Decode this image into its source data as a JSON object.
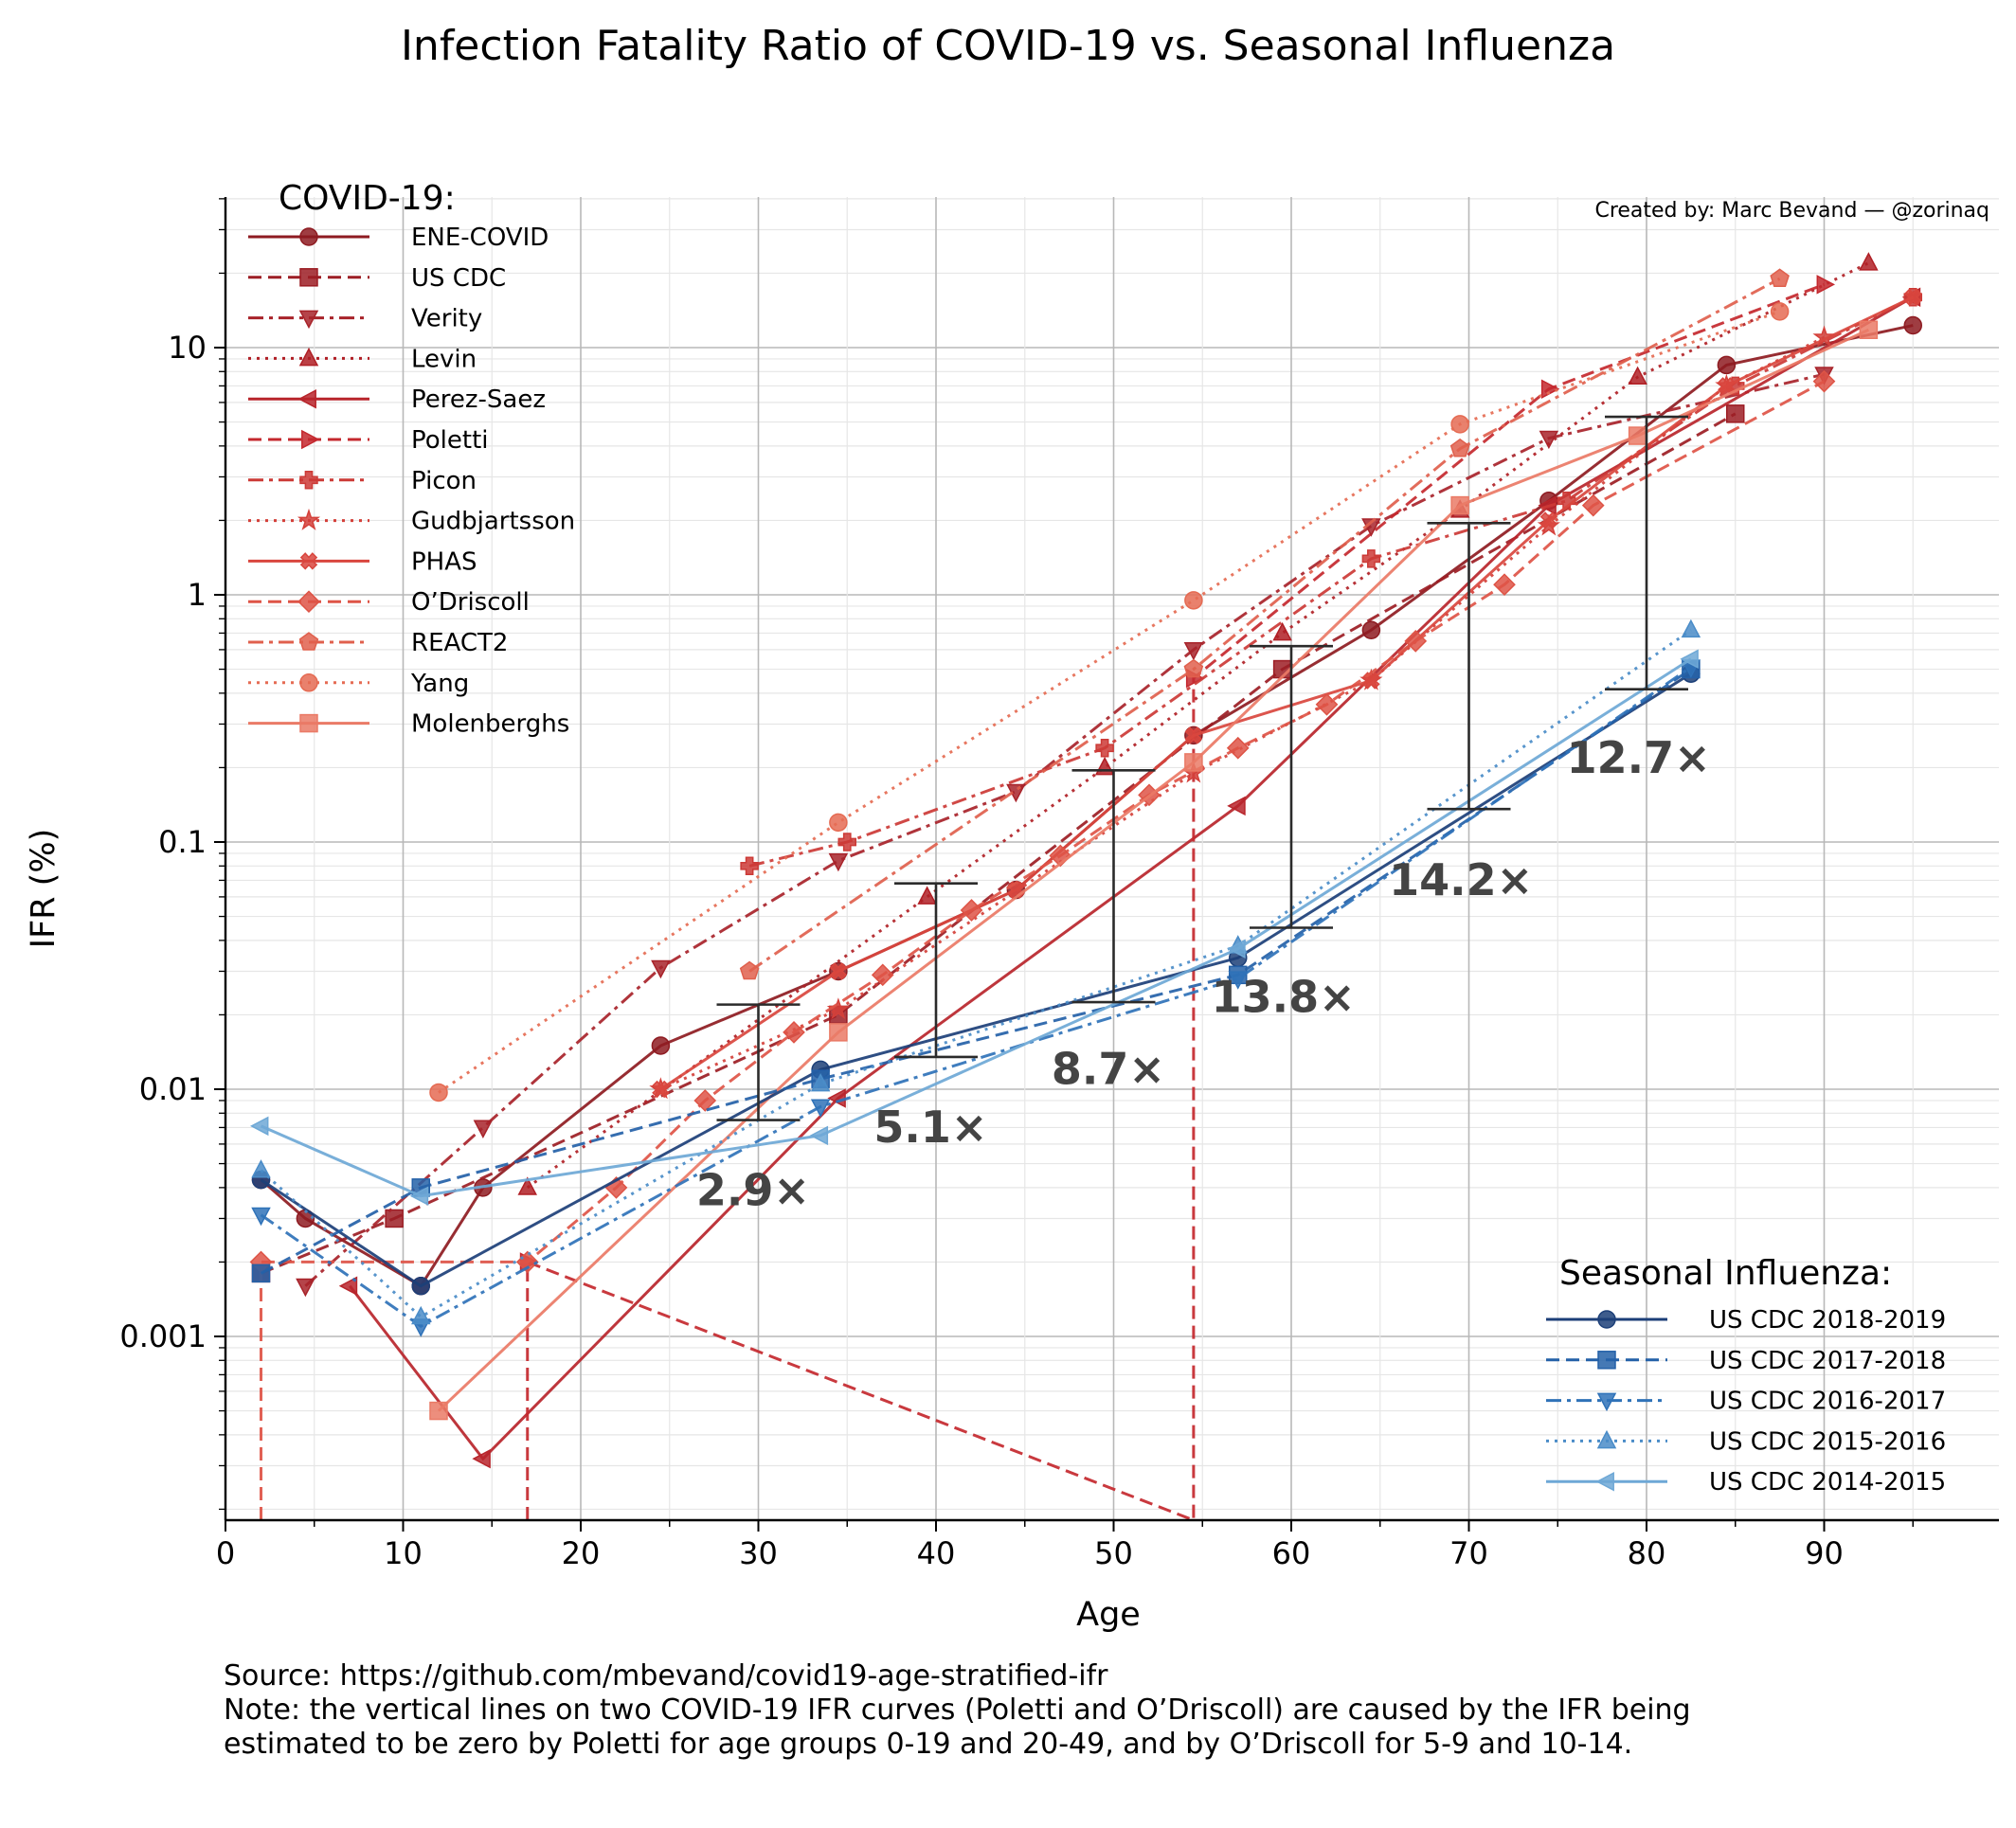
{
  "chart_data": {
    "type": "line",
    "title": "Infection Fatality Ratio of COVID-19 vs. Seasonal Influenza",
    "xlabel": "Age",
    "ylabel": "IFR (%)",
    "credit": "Created by: Marc Bevand — @zorinaq",
    "yscale": "log",
    "xlim": [
      0,
      100
    ],
    "ylim": [
      0.00018,
      40
    ],
    "xticks": [
      "0",
      "10",
      "20",
      "30",
      "40",
      "50",
      "60",
      "70",
      "80",
      "90"
    ],
    "yticks": [
      {
        "value": 0.001,
        "label": "0.001"
      },
      {
        "value": 0.01,
        "label": "0.01"
      },
      {
        "value": 0.1,
        "label": "0.1"
      },
      {
        "value": 1,
        "label": "1"
      },
      {
        "value": 10,
        "label": "10"
      }
    ],
    "grid": true,
    "covid_legend_title": "COVID-19:",
    "flu_legend_title": "Seasonal Influenza:",
    "covid_series": [
      {
        "name": "ENE-COVID",
        "color": "#8e1b21",
        "dash": "solid",
        "marker": "o",
        "points": [
          [
            2,
            0.0043
          ],
          [
            4.5,
            0.003
          ],
          [
            11,
            0.0016
          ],
          [
            14.5,
            0.004
          ],
          [
            24.5,
            0.015
          ],
          [
            34.5,
            0.03
          ],
          [
            44.5,
            0.064
          ],
          [
            54.5,
            0.27
          ],
          [
            64.5,
            0.72
          ],
          [
            74.5,
            2.4
          ],
          [
            84.5,
            8.5
          ],
          [
            95,
            12.3
          ]
        ]
      },
      {
        "name": "US CDC",
        "color": "#9c1d24",
        "dash": "dash",
        "marker": "s",
        "points": [
          [
            2,
            0.0018
          ],
          [
            9.5,
            0.003
          ],
          [
            34.5,
            0.02
          ],
          [
            59.5,
            0.5
          ],
          [
            85,
            5.4
          ]
        ]
      },
      {
        "name": "Verity",
        "color": "#a8232a",
        "dash": "dashdot",
        "marker": "v",
        "points": [
          [
            4.5,
            0.0016
          ],
          [
            14.5,
            0.007
          ],
          [
            24.5,
            0.031
          ],
          [
            34.5,
            0.084
          ],
          [
            44.5,
            0.16
          ],
          [
            54.5,
            0.6
          ],
          [
            64.5,
            1.9
          ],
          [
            74.5,
            4.3
          ],
          [
            90,
            7.8
          ]
        ]
      },
      {
        "name": "Levin",
        "color": "#b01f25",
        "dash": "dot",
        "marker": "^",
        "points": [
          [
            17,
            0.004
          ],
          [
            39.5,
            0.06
          ],
          [
            49.5,
            0.2
          ],
          [
            59.5,
            0.7
          ],
          [
            69.5,
            2.2
          ],
          [
            79.5,
            7.6
          ],
          [
            92.5,
            22
          ]
        ]
      },
      {
        "name": "Perez-Saez",
        "color": "#b8252b",
        "dash": "solid",
        "marker": "<",
        "points": [
          [
            7,
            0.0016
          ],
          [
            14.5,
            0.00032
          ],
          [
            34.5,
            0.0092
          ],
          [
            57,
            0.14
          ],
          [
            74.5,
            2.3
          ],
          [
            95,
            16
          ]
        ]
      },
      {
        "name": "Poletti",
        "color": "#c4282e",
        "dash": "dash",
        "marker": ">",
        "points": [
          [
            17,
            0.00018
          ],
          [
            17,
            0.002
          ],
          [
            54.5,
            0.00018
          ],
          [
            54.5,
            0.46
          ],
          [
            74.5,
            6.8
          ],
          [
            90,
            18
          ]
        ]
      },
      {
        "name": "Picon",
        "color": "#cc3a36",
        "dash": "dashdot",
        "marker": "P",
        "points": [
          [
            29.5,
            0.08
          ],
          [
            35,
            0.1
          ],
          [
            49.5,
            0.24
          ],
          [
            64.5,
            1.4
          ],
          [
            75.5,
            2.4
          ],
          [
            85,
            7
          ],
          [
            95,
            16
          ]
        ]
      },
      {
        "name": "Gudbjartsson",
        "color": "#d4403a",
        "dash": "dot",
        "marker": "*",
        "points": [
          [
            24.5,
            0.01
          ],
          [
            34.5,
            0.021
          ],
          [
            54.5,
            0.19
          ],
          [
            64.5,
            0.45
          ],
          [
            74.5,
            1.9
          ],
          [
            84.5,
            7
          ],
          [
            90,
            11
          ]
        ]
      },
      {
        "name": "PHAS",
        "color": "#d9463e",
        "dash": "solid",
        "marker": "X",
        "points": [
          [
            24.5,
            0.01
          ],
          [
            34.5,
            0.03
          ],
          [
            44.5,
            0.064
          ],
          [
            54.5,
            0.27
          ],
          [
            64.5,
            0.45
          ],
          [
            74.5,
            2
          ],
          [
            84.5,
            7
          ],
          [
            95,
            16
          ]
        ]
      },
      {
        "name": "O’Driscoll",
        "color": "#de5446",
        "dash": "dash",
        "marker": "D",
        "points": [
          [
            2,
            0.00018
          ],
          [
            2,
            0.002
          ],
          [
            17,
            0.002
          ],
          [
            22,
            0.004
          ],
          [
            27,
            0.009
          ],
          [
            32,
            0.017
          ],
          [
            37,
            0.029
          ],
          [
            42,
            0.053
          ],
          [
            47,
            0.088
          ],
          [
            52,
            0.155
          ],
          [
            57,
            0.24
          ],
          [
            62,
            0.36
          ],
          [
            67,
            0.65
          ],
          [
            72,
            1.1
          ],
          [
            77,
            2.3
          ],
          [
            90,
            7.3
          ]
        ]
      },
      {
        "name": "REACT2",
        "color": "#e0604d",
        "dash": "dashdot",
        "marker": "p",
        "points": [
          [
            29.5,
            0.03
          ],
          [
            54.5,
            0.5
          ],
          [
            69.5,
            3.9
          ],
          [
            87.5,
            19
          ]
        ]
      },
      {
        "name": "Yang",
        "color": "#e56b53",
        "dash": "dot",
        "marker": "o",
        "points": [
          [
            12,
            0.0097
          ],
          [
            34.5,
            0.12
          ],
          [
            54.5,
            0.95
          ],
          [
            69.5,
            4.9
          ],
          [
            87.5,
            14
          ]
        ]
      },
      {
        "name": "Molenberghs",
        "color": "#ea7a66",
        "dash": "solid",
        "marker": "s",
        "points": [
          [
            12,
            0.0005
          ],
          [
            34.5,
            0.017
          ],
          [
            54.5,
            0.21
          ],
          [
            69.5,
            2.3
          ],
          [
            79.5,
            4.4
          ],
          [
            92.5,
            11.8
          ]
        ]
      }
    ],
    "flu_series": [
      {
        "name": "US CDC 2018-2019",
        "color": "#1c3f78",
        "dash": "solid",
        "marker": "o",
        "points": [
          [
            2,
            0.0043
          ],
          [
            11,
            0.0016
          ],
          [
            33.5,
            0.012
          ],
          [
            57,
            0.034
          ],
          [
            82.5,
            0.48
          ]
        ]
      },
      {
        "name": "US CDC 2017-2018",
        "color": "#2461a8",
        "dash": "dash",
        "marker": "s",
        "points": [
          [
            2,
            0.0018
          ],
          [
            11,
            0.004
          ],
          [
            33.5,
            0.011
          ],
          [
            57,
            0.029
          ],
          [
            82.5,
            0.5
          ]
        ]
      },
      {
        "name": "US CDC 2016-2017",
        "color": "#2f72b8",
        "dash": "dashdot",
        "marker": "v",
        "points": [
          [
            2,
            0.0031
          ],
          [
            11,
            0.0011
          ],
          [
            33.5,
            0.0085
          ],
          [
            57,
            0.028
          ],
          [
            82.5,
            0.51
          ]
        ]
      },
      {
        "name": "US CDC 2015-2016",
        "color": "#4a8cc8",
        "dash": "dot",
        "marker": "^",
        "points": [
          [
            2,
            0.0047
          ],
          [
            11,
            0.0012
          ],
          [
            33.5,
            0.0105
          ],
          [
            57,
            0.038
          ],
          [
            82.5,
            0.72
          ]
        ]
      },
      {
        "name": "US CDC 2014-2015",
        "color": "#6ea8d6",
        "dash": "solid",
        "marker": "<",
        "points": [
          [
            2,
            0.0071
          ],
          [
            11,
            0.0037
          ],
          [
            33.5,
            0.0065
          ],
          [
            57,
            0.037
          ],
          [
            82.5,
            0.55
          ]
        ]
      }
    ],
    "ratio_annotations": [
      {
        "x": 30,
        "low": 0.0075,
        "high": 0.022,
        "label": "2.9×",
        "label_x": 26.5,
        "label_y": 0.0034
      },
      {
        "x": 40,
        "low": 0.0135,
        "high": 0.068,
        "label": "5.1×",
        "label_x": 36.5,
        "label_y": 0.0061
      },
      {
        "x": 50,
        "low": 0.0225,
        "high": 0.195,
        "label": "8.7×",
        "label_x": 46.5,
        "label_y": 0.0105
      },
      {
        "x": 60,
        "low": 0.045,
        "high": 0.62,
        "label": "13.8×",
        "label_x": 55.5,
        "label_y": 0.0205
      },
      {
        "x": 70,
        "low": 0.136,
        "high": 1.95,
        "label": "14.2×",
        "label_x": 65.5,
        "label_y": 0.061
      },
      {
        "x": 80,
        "low": 0.415,
        "high": 5.25,
        "label": "12.7×",
        "label_x": 75.5,
        "label_y": 0.19
      }
    ]
  },
  "footer": {
    "source": "Source: https://github.com/mbevand/covid19-age-stratified-ifr",
    "note_line1": "Note: the vertical lines on two COVID-19 IFR curves (Poletti and O’Driscoll) are caused by the IFR being",
    "note_line2": "estimated to be zero by Poletti for age groups 0-19 and 20-49, and by O’Driscoll for 5-9 and 10-14."
  }
}
